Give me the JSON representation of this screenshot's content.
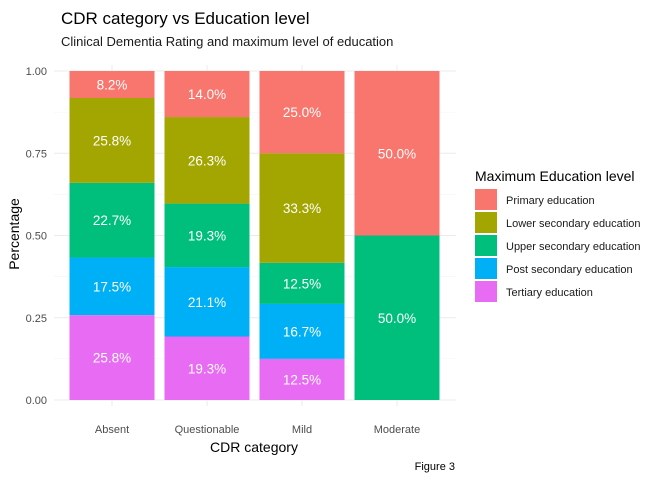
{
  "chart_data": {
    "type": "bar",
    "stacked": true,
    "title": "CDR category vs Education level",
    "subtitle": "Clinical Dementia Rating and maximum level of education",
    "xlabel": "CDR category",
    "ylabel": "Percentage",
    "caption": "Figure 3",
    "ylim": [
      0,
      1
    ],
    "yticks": [
      "0.00",
      "0.25",
      "0.50",
      "0.75",
      "1.00"
    ],
    "ytick_values": [
      0,
      0.25,
      0.5,
      0.75,
      1
    ],
    "grid": true,
    "legend": {
      "title": "Maximum Education level",
      "position": "right"
    },
    "categories": [
      "Absent",
      "Questionable",
      "Mild",
      "Moderate"
    ],
    "series": [
      {
        "name": "Primary education",
        "color": "#F8766D",
        "values": [
          0.082,
          0.14,
          0.25,
          0.5
        ],
        "labels": [
          "8.2%",
          "14.0%",
          "25.0%",
          "50.0%"
        ]
      },
      {
        "name": "Lower secondary education",
        "color": "#A3A500",
        "values": [
          0.258,
          0.263,
          0.333,
          0
        ],
        "labels": [
          "25.8%",
          "26.3%",
          "33.3%",
          ""
        ]
      },
      {
        "name": "Upper secondary education",
        "color": "#00BF7D",
        "values": [
          0.227,
          0.193,
          0.125,
          0.5
        ],
        "labels": [
          "22.7%",
          "19.3%",
          "12.5%",
          "50.0%"
        ]
      },
      {
        "name": "Post secondary education",
        "color": "#00B0F6",
        "values": [
          0.175,
          0.211,
          0.167,
          0
        ],
        "labels": [
          "17.5%",
          "21.1%",
          "16.7%",
          ""
        ]
      },
      {
        "name": "Tertiary education",
        "color": "#E76BF3",
        "values": [
          0.258,
          0.193,
          0.125,
          0
        ],
        "labels": [
          "25.8%",
          "19.3%",
          "12.5%",
          ""
        ]
      }
    ]
  }
}
